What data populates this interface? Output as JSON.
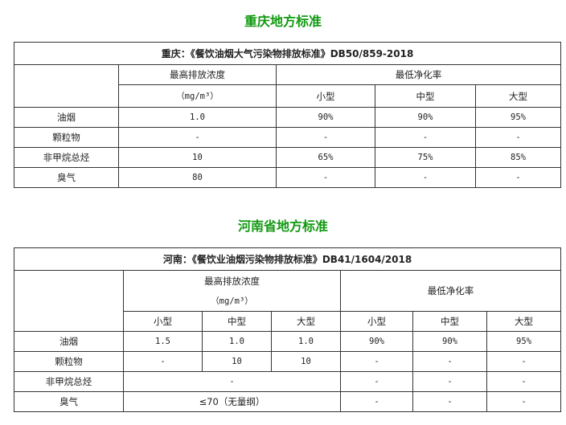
{
  "cq": {
    "heading": "重庆地方标准",
    "title": "重庆：《餐饮油烟大气污染物排放标准》DB50/859-2018",
    "h_max": "最高排放浓度",
    "h_unit": "（mg/m³）",
    "h_min": "最低净化率",
    "small": "小型",
    "mid": "中型",
    "large": "大型",
    "rows": [
      [
        "油烟",
        "1.0",
        "90%",
        "90%",
        "95%"
      ],
      [
        "颗粒物",
        "-",
        "-",
        "-",
        "-"
      ],
      [
        "非甲烷总烃",
        "10",
        "65%",
        "75%",
        "85%"
      ],
      [
        "臭气",
        "80",
        "-",
        "-",
        "-"
      ]
    ]
  },
  "hn": {
    "heading": "河南省地方标准",
    "title": "河南：《餐饮业油烟污染物排放标准》DB41/1604/2018",
    "h_max": "最高排放浓度",
    "h_unit": "（mg/m³）",
    "h_min": "最低净化率",
    "small": "小型",
    "mid": "中型",
    "large": "大型",
    "rows": [
      [
        "油烟",
        "1.5",
        "1.0",
        "1.0",
        "90%",
        "90%",
        "95%"
      ],
      [
        "颗粒物",
        "-",
        "10",
        "10",
        "-",
        "-",
        "-"
      ],
      [
        "非甲烷总烃",
        "-",
        "-",
        "-",
        "-"
      ],
      [
        "臭气",
        "≤70（无量纲）",
        "-",
        "-",
        "-"
      ]
    ]
  }
}
